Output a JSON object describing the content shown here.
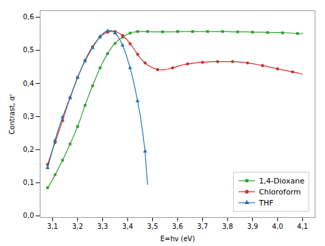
{
  "chart_data": {
    "type": "line",
    "xlabel": "E=hν (eV)",
    "ylabel": "Contrast, αᶜ",
    "xlim": [
      3.05,
      4.15
    ],
    "ylim": [
      -0.005,
      0.62
    ],
    "xticks": [
      {
        "value": 3.1,
        "label": "3,1"
      },
      {
        "value": 3.2,
        "label": "3,2"
      },
      {
        "value": 3.3,
        "label": "3,3"
      },
      {
        "value": 3.4,
        "label": "3,4"
      },
      {
        "value": 3.5,
        "label": "3,5"
      },
      {
        "value": 3.6,
        "label": "3,6"
      },
      {
        "value": 3.7,
        "label": "3,7"
      },
      {
        "value": 3.8,
        "label": "3,8"
      },
      {
        "value": 3.9,
        "label": "3,9"
      },
      {
        "value": 4.0,
        "label": "4,0"
      },
      {
        "value": 4.1,
        "label": "4,1"
      }
    ],
    "yticks": [
      {
        "value": 0.0,
        "label": "0,0"
      },
      {
        "value": 0.1,
        "label": "0,1"
      },
      {
        "value": 0.2,
        "label": "0,2"
      },
      {
        "value": 0.3,
        "label": "0,3"
      },
      {
        "value": 0.4,
        "label": "0,4"
      },
      {
        "value": 0.5,
        "label": "0,5"
      },
      {
        "value": 0.6,
        "label": "0,6"
      }
    ],
    "legend": "lower right",
    "series": [
      {
        "name": "1,4-Dioxane",
        "color": "#2ca02c",
        "marker": "square",
        "x": [
          3.08,
          3.09,
          3.1,
          3.11,
          3.12,
          3.13,
          3.14,
          3.15,
          3.16,
          3.17,
          3.18,
          3.19,
          3.2,
          3.21,
          3.22,
          3.23,
          3.24,
          3.25,
          3.26,
          3.27,
          3.28,
          3.29,
          3.3,
          3.31,
          3.32,
          3.33,
          3.34,
          3.35,
          3.36,
          3.37,
          3.38,
          3.39,
          3.4,
          3.41,
          3.42,
          3.43,
          3.44,
          3.45,
          3.46,
          3.48,
          3.5,
          3.52,
          3.54,
          3.56,
          3.58,
          3.6,
          3.62,
          3.64,
          3.66,
          3.68,
          3.7,
          3.72,
          3.74,
          3.76,
          3.78,
          3.8,
          3.82,
          3.84,
          3.86,
          3.88,
          3.9,
          3.92,
          3.94,
          3.96,
          3.98,
          4.0,
          4.02,
          4.04,
          4.06,
          4.08,
          4.1
        ],
        "values": [
          0.085,
          0.097,
          0.11,
          0.124,
          0.138,
          0.153,
          0.168,
          0.184,
          0.2,
          0.217,
          0.234,
          0.252,
          0.27,
          0.29,
          0.312,
          0.334,
          0.355,
          0.374,
          0.393,
          0.412,
          0.43,
          0.447,
          0.463,
          0.477,
          0.49,
          0.502,
          0.513,
          0.521,
          0.529,
          0.535,
          0.54,
          0.545,
          0.549,
          0.552,
          0.554,
          0.556,
          0.557,
          0.557,
          0.557,
          0.557,
          0.556,
          0.556,
          0.556,
          0.556,
          0.556,
          0.557,
          0.557,
          0.557,
          0.557,
          0.557,
          0.557,
          0.557,
          0.557,
          0.557,
          0.557,
          0.557,
          0.556,
          0.556,
          0.556,
          0.556,
          0.555,
          0.555,
          0.555,
          0.554,
          0.554,
          0.554,
          0.553,
          0.553,
          0.552,
          0.551,
          0.55
        ]
      },
      {
        "name": "Chloroform",
        "color": "#d62728",
        "marker": "circle",
        "x": [
          3.08,
          3.09,
          3.1,
          3.11,
          3.12,
          3.13,
          3.14,
          3.15,
          3.16,
          3.17,
          3.18,
          3.19,
          3.2,
          3.21,
          3.22,
          3.23,
          3.24,
          3.25,
          3.26,
          3.27,
          3.28,
          3.29,
          3.3,
          3.31,
          3.32,
          3.33,
          3.34,
          3.35,
          3.36,
          3.37,
          3.38,
          3.39,
          3.4,
          3.41,
          3.42,
          3.43,
          3.44,
          3.45,
          3.46,
          3.47,
          3.48,
          3.5,
          3.52,
          3.54,
          3.56,
          3.58,
          3.6,
          3.62,
          3.64,
          3.66,
          3.68,
          3.7,
          3.72,
          3.74,
          3.76,
          3.78,
          3.8,
          3.82,
          3.84,
          3.86,
          3.88,
          3.9,
          3.92,
          3.94,
          3.96,
          3.98,
          4.0,
          4.02,
          4.04,
          4.06,
          4.08,
          4.1
        ],
        "values": [
          0.155,
          0.178,
          0.2,
          0.222,
          0.244,
          0.266,
          0.288,
          0.312,
          0.335,
          0.356,
          0.377,
          0.398,
          0.418,
          0.436,
          0.454,
          0.47,
          0.486,
          0.499,
          0.511,
          0.522,
          0.532,
          0.54,
          0.547,
          0.552,
          0.555,
          0.557,
          0.558,
          0.557,
          0.554,
          0.55,
          0.545,
          0.538,
          0.53,
          0.52,
          0.51,
          0.499,
          0.488,
          0.478,
          0.469,
          0.462,
          0.456,
          0.447,
          0.442,
          0.441,
          0.443,
          0.447,
          0.452,
          0.456,
          0.459,
          0.461,
          0.463,
          0.464,
          0.465,
          0.466,
          0.466,
          0.466,
          0.466,
          0.466,
          0.465,
          0.464,
          0.462,
          0.46,
          0.457,
          0.454,
          0.451,
          0.448,
          0.444,
          0.441,
          0.438,
          0.435,
          0.432,
          0.428
        ]
      },
      {
        "name": "THF",
        "color": "#1f77b4",
        "marker": "triangle",
        "x": [
          3.08,
          3.09,
          3.1,
          3.11,
          3.12,
          3.13,
          3.14,
          3.15,
          3.16,
          3.17,
          3.18,
          3.19,
          3.2,
          3.21,
          3.22,
          3.23,
          3.24,
          3.25,
          3.26,
          3.27,
          3.28,
          3.29,
          3.3,
          3.31,
          3.32,
          3.33,
          3.34,
          3.35,
          3.36,
          3.37,
          3.38,
          3.39,
          3.4,
          3.41,
          3.42,
          3.43,
          3.44,
          3.45,
          3.46,
          3.47,
          3.475,
          3.48
        ],
        "values": [
          0.145,
          0.173,
          0.2,
          0.228,
          0.255,
          0.277,
          0.298,
          0.318,
          0.338,
          0.358,
          0.378,
          0.398,
          0.418,
          0.436,
          0.453,
          0.468,
          0.482,
          0.495,
          0.508,
          0.52,
          0.532,
          0.542,
          0.55,
          0.556,
          0.559,
          0.56,
          0.558,
          0.552,
          0.543,
          0.531,
          0.515,
          0.496,
          0.473,
          0.447,
          0.418,
          0.384,
          0.347,
          0.305,
          0.255,
          0.195,
          0.14,
          0.095
        ]
      }
    ]
  }
}
